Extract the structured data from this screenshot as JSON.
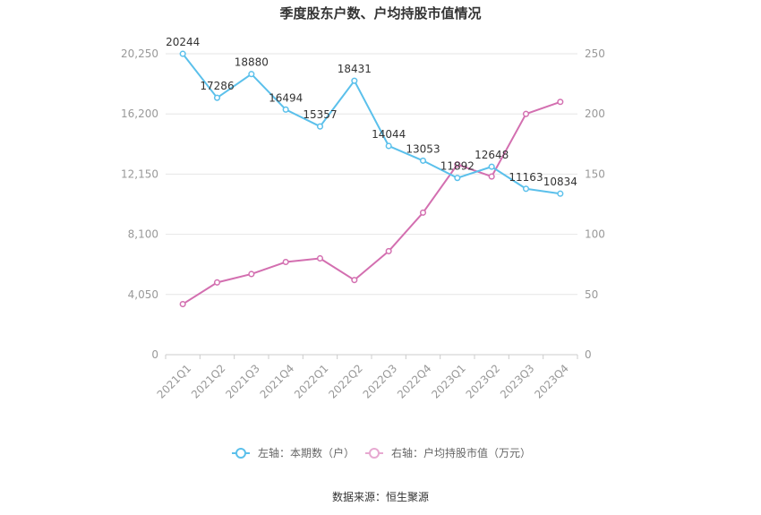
{
  "chart_data": {
    "type": "line",
    "title": "季度股东户数、户均持股市值情况",
    "categories": [
      "2021Q1",
      "2021Q2",
      "2021Q3",
      "2021Q4",
      "2022Q1",
      "2022Q2",
      "2022Q3",
      "2022Q4",
      "2023Q1",
      "2023Q2",
      "2023Q3",
      "2023Q4"
    ],
    "left_axis": {
      "ticks": [
        "0",
        "4,050",
        "8,100",
        "12,150",
        "16,200",
        "20,250"
      ],
      "ylim": [
        0,
        20250
      ]
    },
    "right_axis": {
      "ticks": [
        "0",
        "50",
        "100",
        "150",
        "200",
        "250"
      ],
      "ylim": [
        0,
        250
      ]
    },
    "series": [
      {
        "name": "左轴：本期数（户）",
        "axis": "left",
        "color": "#5bc0eb",
        "values": [
          20244,
          17286,
          18880,
          16494,
          15357,
          18431,
          14044,
          13053,
          11892,
          12648,
          11163,
          10834
        ],
        "labels": [
          "20244",
          "17286",
          "18880",
          "16494",
          "15357",
          "18431",
          "14044",
          "13053",
          "11892",
          "12648",
          "11163",
          "10834"
        ]
      },
      {
        "name": "右轴：户均持股市值（万元）",
        "axis": "right",
        "color": "#d36fb0",
        "values": [
          42,
          60,
          67,
          77,
          80,
          62,
          86,
          118,
          158,
          148,
          200,
          210
        ]
      }
    ],
    "legend_position": "bottom",
    "grid": true
  },
  "source": "数据来源：恒生聚源"
}
